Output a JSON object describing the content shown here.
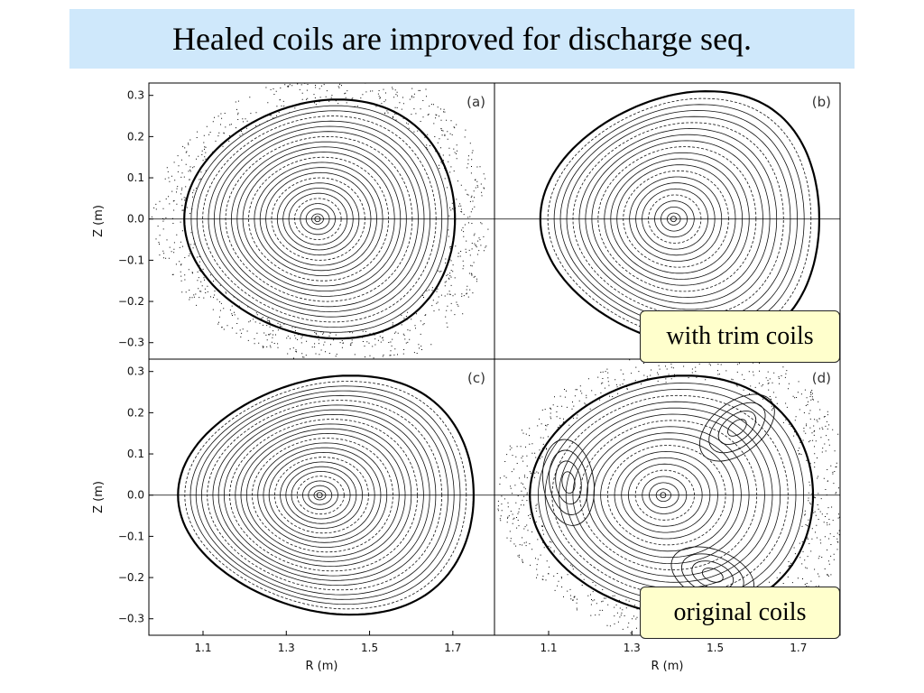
{
  "slide": {
    "title": "Healed coils are improved for discharge seq.",
    "callouts": {
      "trim": "with trim coils",
      "original": "original coils"
    }
  },
  "chart_data": {
    "type": "scatter",
    "description_kind": "poincare-plot-grid",
    "xlabel": "R (m)",
    "ylabel": "Z (m)",
    "xlim": [
      0.97,
      1.8
    ],
    "ylim": [
      -0.34,
      0.33
    ],
    "x_ticks": [
      1.1,
      1.3,
      1.5,
      1.7
    ],
    "y_ticks": [
      0.3,
      0.2,
      0.1,
      0.0,
      -0.1,
      -0.2,
      -0.3
    ],
    "x_tick_labels": [
      "1.1",
      "1.3",
      "1.5",
      "1.7"
    ],
    "y_tick_labels": [
      "0.3",
      "0.2",
      "0.1",
      "0.0",
      "−0.1",
      "−0.2",
      "−0.3"
    ],
    "panels": [
      {
        "label": "(a)",
        "axis_r": 1.375,
        "core_r": 1.385,
        "half_width_in": 0.32,
        "half_width_out": 0.33,
        "half_height": 0.29,
        "tri_shift": -0.05,
        "n_surfaces": 22,
        "islands": 0,
        "stochastic": true,
        "wall": true
      },
      {
        "label": "(b)",
        "axis_r": 1.4,
        "core_r": 1.395,
        "half_width_in": 0.32,
        "half_width_out": 0.35,
        "half_height": 0.31,
        "tri_shift": -0.08,
        "n_surfaces": 20,
        "islands": 0,
        "stochastic": false,
        "wall": true
      },
      {
        "label": "(c)",
        "axis_r": 1.38,
        "core_r": 1.39,
        "half_width_in": 0.34,
        "half_width_out": 0.37,
        "half_height": 0.29,
        "tri_shift": -0.07,
        "n_surfaces": 24,
        "islands": 0,
        "stochastic": false,
        "wall": true
      },
      {
        "label": "(d)",
        "axis_r": 1.375,
        "core_r": 1.37,
        "half_width_in": 0.32,
        "half_width_out": 0.36,
        "half_height": 0.29,
        "tri_shift": -0.05,
        "n_surfaces": 18,
        "islands": 3,
        "stochastic": true,
        "wall": true
      }
    ]
  }
}
